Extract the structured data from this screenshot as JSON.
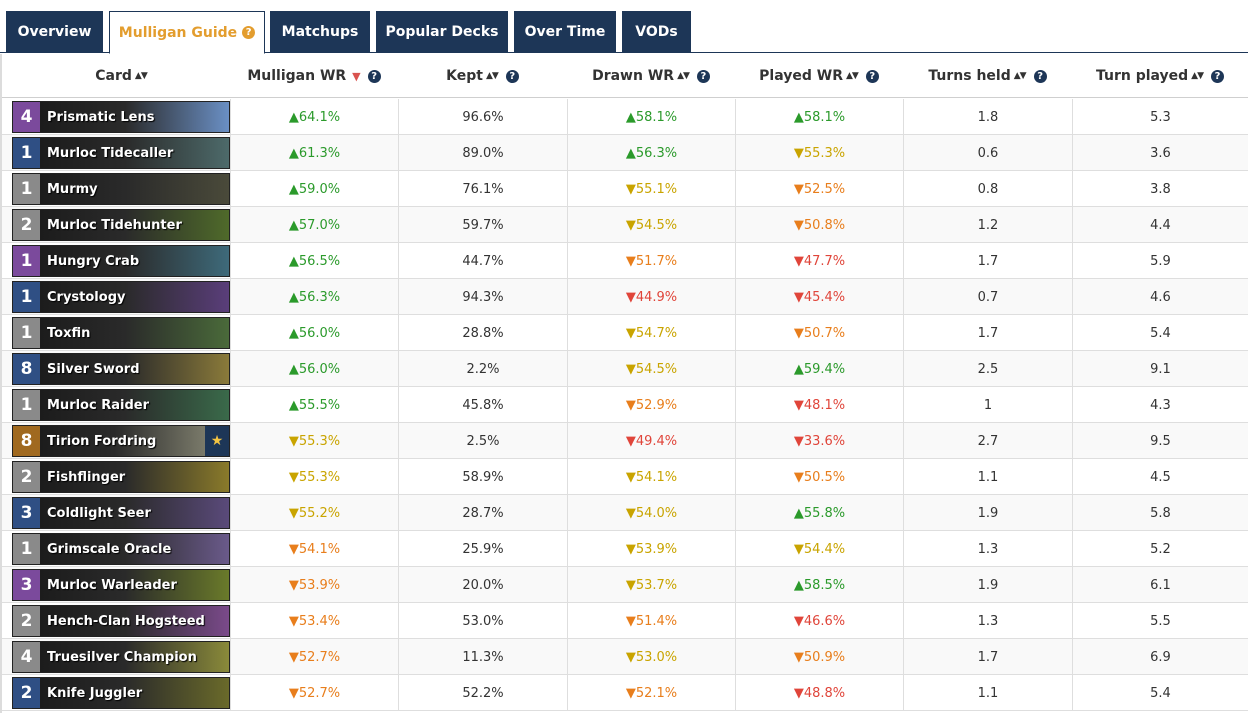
{
  "tabs": [
    {
      "label": "Overview",
      "active": false
    },
    {
      "label": "Mulligan Guide",
      "active": true,
      "help": "?"
    },
    {
      "label": "Matchups",
      "active": false
    },
    {
      "label": "Popular Decks",
      "active": false
    },
    {
      "label": "Over Time",
      "active": false
    },
    {
      "label": "VODs",
      "active": false
    }
  ],
  "columns": [
    {
      "label": "Card",
      "sort": "▲▼",
      "help": ""
    },
    {
      "label": "Mulligan WR",
      "sort": "▼",
      "help": "?"
    },
    {
      "label": "Kept",
      "sort": "▲▼",
      "help": "?"
    },
    {
      "label": "Drawn WR",
      "sort": "▲▼",
      "help": "?"
    },
    {
      "label": "Played WR",
      "sort": "▲▼",
      "help": "?"
    },
    {
      "label": "Turns held",
      "sort": "▲▼",
      "help": "?"
    },
    {
      "label": "Turn played",
      "sort": "▲▼",
      "help": "?"
    }
  ],
  "colors": {
    "navy": "#1d3657",
    "orange": "#e39d2e",
    "up": "#2b9a2b",
    "mid": "#c9a400",
    "low": "#e87e1c",
    "down": "#e0453a"
  },
  "rows": [
    {
      "cost": "4",
      "rarity": "epic",
      "name": "Prismatic Lens",
      "art": "#6a8fc4",
      "mwr": "▲64.1%",
      "mwr_t": "up",
      "kept": "96.6%",
      "dwr": "▲58.1%",
      "dwr_t": "up",
      "pwr": "▲58.1%",
      "pwr_t": "up",
      "held": "1.8",
      "played": "5.3"
    },
    {
      "cost": "1",
      "rarity": "rare",
      "name": "Murloc Tidecaller",
      "art": "#4d6a6a",
      "mwr": "▲61.3%",
      "mwr_t": "up",
      "kept": "89.0%",
      "dwr": "▲56.3%",
      "dwr_t": "up",
      "pwr": "▼55.3%",
      "pwr_t": "mid",
      "held": "0.6",
      "played": "3.6"
    },
    {
      "cost": "1",
      "rarity": "common",
      "name": "Murmy",
      "art": "#4a4a3a",
      "mwr": "▲59.0%",
      "mwr_t": "up",
      "kept": "76.1%",
      "dwr": "▼55.1%",
      "dwr_t": "mid",
      "pwr": "▼52.5%",
      "pwr_t": "lo",
      "held": "0.8",
      "played": "3.8"
    },
    {
      "cost": "2",
      "rarity": "common",
      "name": "Murloc Tidehunter",
      "art": "#4f6a2a",
      "mwr": "▲57.0%",
      "mwr_t": "up",
      "kept": "59.7%",
      "dwr": "▼54.5%",
      "dwr_t": "mid",
      "pwr": "▼50.8%",
      "pwr_t": "lo",
      "held": "1.2",
      "played": "4.4"
    },
    {
      "cost": "1",
      "rarity": "epic",
      "name": "Hungry Crab",
      "art": "#3e6a7a",
      "mwr": "▲56.5%",
      "mwr_t": "up",
      "kept": "44.7%",
      "dwr": "▼51.7%",
      "dwr_t": "lo",
      "pwr": "▼47.7%",
      "pwr_t": "down",
      "held": "1.7",
      "played": "5.9"
    },
    {
      "cost": "1",
      "rarity": "rare",
      "name": "Crystology",
      "art": "#5a3e7a",
      "mwr": "▲56.3%",
      "mwr_t": "up",
      "kept": "94.3%",
      "dwr": "▼44.9%",
      "dwr_t": "down",
      "pwr": "▼45.4%",
      "pwr_t": "down",
      "held": "0.7",
      "played": "4.6"
    },
    {
      "cost": "1",
      "rarity": "common",
      "name": "Toxfin",
      "art": "#4a6a3a",
      "mwr": "▲56.0%",
      "mwr_t": "up",
      "kept": "28.8%",
      "dwr": "▼54.7%",
      "dwr_t": "mid",
      "pwr": "▼50.7%",
      "pwr_t": "lo",
      "held": "1.7",
      "played": "5.4"
    },
    {
      "cost": "8",
      "rarity": "rare",
      "name": "Silver Sword",
      "art": "#8a7a3a",
      "mwr": "▲56.0%",
      "mwr_t": "up",
      "kept": "2.2%",
      "dwr": "▼54.5%",
      "dwr_t": "mid",
      "pwr": "▲59.4%",
      "pwr_t": "up",
      "held": "2.5",
      "played": "9.1"
    },
    {
      "cost": "1",
      "rarity": "common",
      "name": "Murloc Raider",
      "art": "#3a6a4a",
      "mwr": "▲55.5%",
      "mwr_t": "up",
      "kept": "45.8%",
      "dwr": "▼52.9%",
      "dwr_t": "lo",
      "pwr": "▼48.1%",
      "pwr_t": "down",
      "held": "1",
      "played": "4.3"
    },
    {
      "cost": "8",
      "rarity": "legendary",
      "name": "Tirion Fordring",
      "art": "#7a7a6a",
      "star": true,
      "mwr": "▼55.3%",
      "mwr_t": "mid",
      "kept": "2.5%",
      "dwr": "▼49.4%",
      "dwr_t": "down",
      "pwr": "▼33.6%",
      "pwr_t": "down",
      "held": "2.7",
      "played": "9.5"
    },
    {
      "cost": "2",
      "rarity": "common",
      "name": "Fishflinger",
      "art": "#8a7a2a",
      "mwr": "▼55.3%",
      "mwr_t": "mid",
      "kept": "58.9%",
      "dwr": "▼54.1%",
      "dwr_t": "mid",
      "pwr": "▼50.5%",
      "pwr_t": "lo",
      "held": "1.1",
      "played": "4.5"
    },
    {
      "cost": "3",
      "rarity": "rare",
      "name": "Coldlight Seer",
      "art": "#5a4a7a",
      "mwr": "▼55.2%",
      "mwr_t": "mid",
      "kept": "28.7%",
      "dwr": "▼54.0%",
      "dwr_t": "mid",
      "pwr": "▲55.8%",
      "pwr_t": "up",
      "held": "1.9",
      "played": "5.8"
    },
    {
      "cost": "1",
      "rarity": "common",
      "name": "Grimscale Oracle",
      "art": "#6a5a8a",
      "mwr": "▼54.1%",
      "mwr_t": "lo",
      "kept": "25.9%",
      "dwr": "▼53.9%",
      "dwr_t": "mid",
      "pwr": "▼54.4%",
      "pwr_t": "mid",
      "held": "1.3",
      "played": "5.2"
    },
    {
      "cost": "3",
      "rarity": "epic",
      "name": "Murloc Warleader",
      "art": "#6a7a2a",
      "mwr": "▼53.9%",
      "mwr_t": "lo",
      "kept": "20.0%",
      "dwr": "▼53.7%",
      "dwr_t": "mid",
      "pwr": "▲58.5%",
      "pwr_t": "up",
      "held": "1.9",
      "played": "6.1"
    },
    {
      "cost": "2",
      "rarity": "common",
      "name": "Hench-Clan Hogsteed",
      "art": "#7a4a8a",
      "mwr": "▼53.4%",
      "mwr_t": "lo",
      "kept": "53.0%",
      "dwr": "▼51.4%",
      "dwr_t": "lo",
      "pwr": "▼46.6%",
      "pwr_t": "down",
      "held": "1.3",
      "played": "5.5"
    },
    {
      "cost": "4",
      "rarity": "common",
      "name": "Truesilver Champion",
      "art": "#8a8a3a",
      "mwr": "▼52.7%",
      "mwr_t": "lo",
      "kept": "11.3%",
      "dwr": "▼53.0%",
      "dwr_t": "mid",
      "pwr": "▼50.9%",
      "pwr_t": "lo",
      "held": "1.7",
      "played": "6.9"
    },
    {
      "cost": "2",
      "rarity": "rare",
      "name": "Knife Juggler",
      "art": "#6a6a2a",
      "mwr": "▼52.7%",
      "mwr_t": "lo",
      "kept": "52.2%",
      "dwr": "▼52.1%",
      "dwr_t": "lo",
      "pwr": "▼48.8%",
      "pwr_t": "down",
      "held": "1.1",
      "played": "5.4"
    }
  ]
}
